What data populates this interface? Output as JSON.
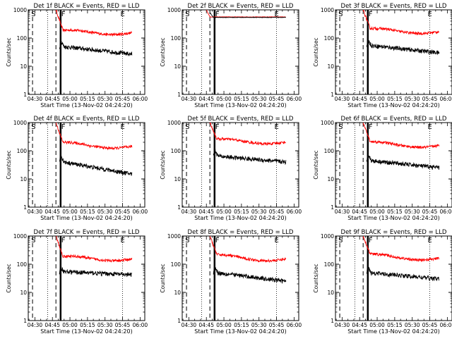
{
  "chart_data": [
    {
      "type": "line",
      "title": "Det 1f BLACK = Events, RED = LLD",
      "xlabel": "Start Time (13-Nov-02 04:24:20)",
      "ylabel": "Counts/sec",
      "yscale": "log",
      "ylim": [
        1,
        1000
      ],
      "y_ticks": [
        "1",
        "10",
        "100",
        "1000"
      ],
      "x_ticks": [
        "04:30",
        "04:45",
        "05:00",
        "05:15",
        "05:30",
        "05:45",
        "06:00"
      ],
      "markers": {
        "S": "04:28",
        "F": "04:52",
        "E": "05:45"
      },
      "series": [
        {
          "name": "LLD",
          "color": "#ff0000",
          "shape": "flare",
          "start": "04:45",
          "peak": 1000,
          "settle": 190,
          "level": 150,
          "end": "05:53"
        },
        {
          "name": "Events",
          "color": "#000000",
          "shape": "decay",
          "start": "04:51",
          "peak": 78,
          "level": 50,
          "final": 27,
          "end": "05:53"
        }
      ]
    },
    {
      "type": "line",
      "title": "Det 2f BLACK = Events, RED = LLD",
      "xlabel": "Start Time (13-Nov-02 04:24:20)",
      "ylabel": "Counts/sec",
      "yscale": "log",
      "ylim": [
        1,
        1000
      ],
      "y_ticks": [
        "1",
        "10",
        "100",
        "1000"
      ],
      "x_ticks": [
        "04:30",
        "04:45",
        "05:00",
        "05:15",
        "05:30",
        "05:45",
        "06:00"
      ],
      "markers": {
        "S": "04:28",
        "F": "04:52",
        "E": "05:45"
      },
      "series": [
        {
          "name": "LLD",
          "color": "#ff0000",
          "shape": "flat",
          "start": "04:45",
          "peak": 1000,
          "level": 560,
          "end": "05:53"
        },
        {
          "name": "Events",
          "color": "#000000",
          "shape": "flat",
          "start": "04:48",
          "peak": 800,
          "level": 540,
          "end": "05:53"
        }
      ]
    },
    {
      "type": "line",
      "title": "Det 3f BLACK = Events, RED = LLD",
      "xlabel": "Start Time (13-Nov-02 04:24:20)",
      "ylabel": "Counts/sec",
      "yscale": "log",
      "ylim": [
        1,
        1000
      ],
      "y_ticks": [
        "1",
        "10",
        "100",
        "1000"
      ],
      "x_ticks": [
        "04:30",
        "04:45",
        "05:00",
        "05:15",
        "05:30",
        "05:45",
        "06:00"
      ],
      "markers": {
        "S": "04:28",
        "F": "04:52",
        "E": "05:45"
      },
      "series": [
        {
          "name": "LLD",
          "color": "#ff0000",
          "shape": "flare",
          "start": "04:45",
          "peak": 1000,
          "settle": 220,
          "level": 165,
          "end": "05:53"
        },
        {
          "name": "Events",
          "color": "#000000",
          "shape": "decay",
          "start": "04:51",
          "peak": 85,
          "level": 55,
          "final": 30,
          "end": "05:53"
        }
      ]
    },
    {
      "type": "line",
      "title": "Det 4f BLACK = Events, RED = LLD",
      "xlabel": "Start Time (13-Nov-02 04:24:20)",
      "ylabel": "Counts/sec",
      "yscale": "log",
      "ylim": [
        1,
        1000
      ],
      "y_ticks": [
        "1",
        "10",
        "100",
        "1000"
      ],
      "x_ticks": [
        "04:30",
        "04:45",
        "05:00",
        "05:15",
        "05:30",
        "05:45",
        "06:00"
      ],
      "markers": {
        "S": "04:28",
        "F": "04:52",
        "E": "05:45"
      },
      "series": [
        {
          "name": "LLD",
          "color": "#ff0000",
          "shape": "flare",
          "start": "04:45",
          "peak": 1000,
          "settle": 200,
          "level": 140,
          "end": "05:53"
        },
        {
          "name": "Events",
          "color": "#000000",
          "shape": "decay",
          "start": "04:51",
          "peak": 70,
          "level": 40,
          "final": 15,
          "end": "05:53"
        }
      ]
    },
    {
      "type": "line",
      "title": "Det 5f BLACK = Events, RED = LLD",
      "xlabel": "Start Time (13-Nov-02 04:24:20)",
      "ylabel": "Counts/sec",
      "yscale": "log",
      "ylim": [
        1,
        1000
      ],
      "y_ticks": [
        "1",
        "10",
        "100",
        "1000"
      ],
      "x_ticks": [
        "04:30",
        "04:45",
        "05:00",
        "05:15",
        "05:30",
        "05:45",
        "06:00"
      ],
      "markers": {
        "S": "04:28",
        "F": "04:52",
        "E": "05:45"
      },
      "series": [
        {
          "name": "LLD",
          "color": "#ff0000",
          "shape": "flare",
          "start": "04:45",
          "peak": 1000,
          "settle": 260,
          "level": 200,
          "end": "05:53"
        },
        {
          "name": "Events",
          "color": "#000000",
          "shape": "decay",
          "start": "04:51",
          "peak": 110,
          "level": 65,
          "final": 40,
          "end": "05:53"
        }
      ]
    },
    {
      "type": "line",
      "title": "Det 6f BLACK = Events, RED = LLD",
      "xlabel": "Start Time (13-Nov-02 04:24:20)",
      "ylabel": "Counts/sec",
      "yscale": "log",
      "ylim": [
        1,
        1000
      ],
      "y_ticks": [
        "1",
        "10",
        "100",
        "1000"
      ],
      "x_ticks": [
        "04:30",
        "04:45",
        "05:00",
        "05:15",
        "05:30",
        "05:45",
        "06:00"
      ],
      "markers": {
        "S": "04:28",
        "F": "04:52",
        "E": "05:45"
      },
      "series": [
        {
          "name": "LLD",
          "color": "#ff0000",
          "shape": "flare",
          "start": "04:45",
          "peak": 1000,
          "settle": 210,
          "level": 150,
          "end": "05:53"
        },
        {
          "name": "Events",
          "color": "#000000",
          "shape": "decay",
          "start": "04:51",
          "peak": 75,
          "level": 45,
          "final": 25,
          "end": "05:53"
        }
      ]
    },
    {
      "type": "line",
      "title": "Det 7f BLACK = Events, RED = LLD",
      "xlabel": "Start Time (13-Nov-02 04:24:20)",
      "ylabel": "Counts/sec",
      "yscale": "log",
      "ylim": [
        1,
        1000
      ],
      "y_ticks": [
        "1",
        "10",
        "100",
        "1000"
      ],
      "x_ticks": [
        "04:30",
        "04:45",
        "05:00",
        "05:15",
        "05:30",
        "05:45",
        "06:00"
      ],
      "markers": {
        "S": "04:28",
        "F": "04:52",
        "E": "05:45"
      },
      "series": [
        {
          "name": "LLD",
          "color": "#ff0000",
          "shape": "flare",
          "start": "04:45",
          "peak": 1000,
          "settle": 190,
          "level": 150,
          "end": "05:53"
        },
        {
          "name": "Events",
          "color": "#000000",
          "shape": "decay",
          "start": "04:51",
          "peak": 80,
          "level": 55,
          "final": 42,
          "end": "05:53"
        }
      ]
    },
    {
      "type": "line",
      "title": "Det 8f BLACK = Events, RED = LLD",
      "xlabel": "Start Time (13-Nov-02 04:24:20)",
      "ylabel": "Counts/sec",
      "yscale": "log",
      "ylim": [
        1,
        1000
      ],
      "y_ticks": [
        "1",
        "10",
        "100",
        "1000"
      ],
      "x_ticks": [
        "04:30",
        "04:45",
        "05:00",
        "05:15",
        "05:30",
        "05:45",
        "06:00"
      ],
      "markers": {
        "S": "04:28",
        "F": "04:52",
        "E": "05:45"
      },
      "series": [
        {
          "name": "LLD",
          "color": "#ff0000",
          "shape": "flare",
          "start": "04:45",
          "peak": 1000,
          "settle": 220,
          "level": 150,
          "end": "05:53"
        },
        {
          "name": "Events",
          "color": "#000000",
          "shape": "decay",
          "start": "04:51",
          "peak": 80,
          "level": 50,
          "final": 25,
          "end": "05:53"
        }
      ]
    },
    {
      "type": "line",
      "title": "Det 9f BLACK = Events, RED = LLD",
      "xlabel": "Start Time (13-Nov-02 04:24:20)",
      "ylabel": "Counts/sec",
      "yscale": "log",
      "ylim": [
        1,
        1000
      ],
      "y_ticks": [
        "1",
        "10",
        "100",
        "1000"
      ],
      "x_ticks": [
        "04:30",
        "04:45",
        "05:00",
        "05:15",
        "05:30",
        "05:45",
        "06:00"
      ],
      "markers": {
        "S": "04:28",
        "F": "04:52",
        "E": "05:45"
      },
      "series": [
        {
          "name": "LLD",
          "color": "#ff0000",
          "shape": "flare",
          "start": "04:45",
          "peak": 1000,
          "settle": 230,
          "level": 160,
          "end": "05:53"
        },
        {
          "name": "Events",
          "color": "#000000",
          "shape": "decay",
          "start": "04:51",
          "peak": 82,
          "level": 50,
          "final": 30,
          "end": "05:53"
        }
      ]
    }
  ]
}
